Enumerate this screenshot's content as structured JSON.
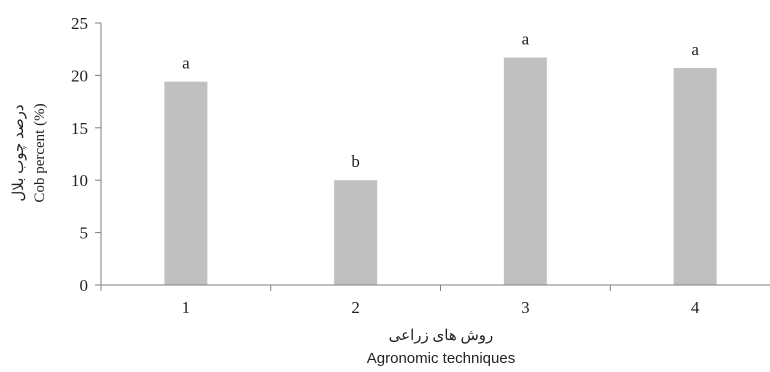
{
  "chart_data": {
    "type": "bar",
    "title": "",
    "categories": [
      "1",
      "2",
      "3",
      "4"
    ],
    "values": [
      19.4,
      10.0,
      21.7,
      20.7
    ],
    "data_labels": [
      "a",
      "b",
      "a",
      "a"
    ],
    "xlabel_fa": "روش های زراعی",
    "xlabel_en": "Agronomic techniques",
    "ylabel_fa": "درصد چوب بلال",
    "ylabel_en": "Cob percent (%)",
    "ylim": [
      0,
      25
    ],
    "yticks": [
      "0",
      "5",
      "10",
      "15",
      "20",
      "25"
    ],
    "grid": false,
    "legend": "none",
    "colors": {
      "bar": "#c0c0c0",
      "axis": "#7f7f7f",
      "text": "#222222"
    }
  }
}
